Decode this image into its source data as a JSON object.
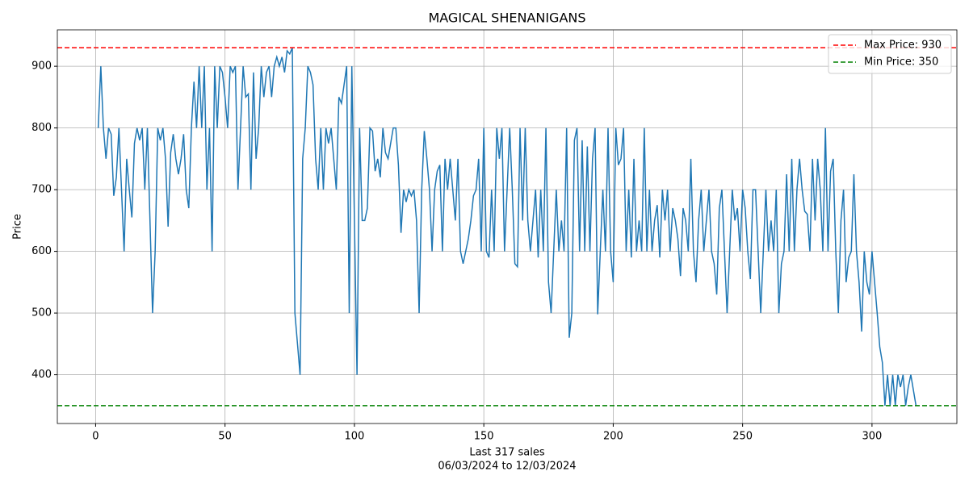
{
  "chart_data": {
    "type": "line",
    "title": "MAGICAL SHENANIGANS",
    "xlabel": [
      "Last 317 sales",
      "06/03/2024 to 12/03/2024"
    ],
    "ylabel": "Price",
    "xlim": [
      -14.8,
      332.8
    ],
    "ylim": [
      321,
      959
    ],
    "xticks": [
      0,
      50,
      100,
      150,
      200,
      250,
      300
    ],
    "yticks": [
      400,
      500,
      600,
      700,
      800,
      900
    ],
    "grid": true,
    "legend": "upper right",
    "x": [
      1,
      2,
      3,
      4,
      5,
      6,
      7,
      8,
      9,
      10,
      11,
      12,
      13,
      14,
      15,
      16,
      17,
      18,
      19,
      20,
      21,
      22,
      23,
      24,
      25,
      26,
      27,
      28,
      29,
      30,
      31,
      32,
      33,
      34,
      35,
      36,
      37,
      38,
      39,
      40,
      41,
      42,
      43,
      44,
      45,
      46,
      47,
      48,
      49,
      50,
      51,
      52,
      53,
      54,
      55,
      56,
      57,
      58,
      59,
      60,
      61,
      62,
      63,
      64,
      65,
      66,
      67,
      68,
      69,
      70,
      71,
      72,
      73,
      74,
      75,
      76,
      77,
      78,
      79,
      80,
      81,
      82,
      83,
      84,
      85,
      86,
      87,
      88,
      89,
      90,
      91,
      92,
      93,
      94,
      95,
      96,
      97,
      98,
      99,
      100,
      101,
      102,
      103,
      104,
      105,
      106,
      107,
      108,
      109,
      110,
      111,
      112,
      113,
      114,
      115,
      116,
      117,
      118,
      119,
      120,
      121,
      122,
      123,
      124,
      125,
      126,
      127,
      128,
      129,
      130,
      131,
      132,
      133,
      134,
      135,
      136,
      137,
      138,
      139,
      140,
      141,
      142,
      143,
      144,
      145,
      146,
      147,
      148,
      149,
      150,
      151,
      152,
      153,
      154,
      155,
      156,
      157,
      158,
      159,
      160,
      161,
      162,
      163,
      164,
      165,
      166,
      167,
      168,
      169,
      170,
      171,
      172,
      173,
      174,
      175,
      176,
      177,
      178,
      179,
      180,
      181,
      182,
      183,
      184,
      185,
      186,
      187,
      188,
      189,
      190,
      191,
      192,
      193,
      194,
      195,
      196,
      197,
      198,
      199,
      200,
      201,
      202,
      203,
      204,
      205,
      206,
      207,
      208,
      209,
      210,
      211,
      212,
      213,
      214,
      215,
      216,
      217,
      218,
      219,
      220,
      221,
      222,
      223,
      224,
      225,
      226,
      227,
      228,
      229,
      230,
      231,
      232,
      233,
      234,
      235,
      236,
      237,
      238,
      239,
      240,
      241,
      242,
      243,
      244,
      245,
      246,
      247,
      248,
      249,
      250,
      251,
      252,
      253,
      254,
      255,
      256,
      257,
      258,
      259,
      260,
      261,
      262,
      263,
      264,
      265,
      266,
      267,
      268,
      269,
      270,
      271,
      272,
      273,
      274,
      275,
      276,
      277,
      278,
      279,
      280,
      281,
      282,
      283,
      284,
      285,
      286,
      287,
      288,
      289,
      290,
      291,
      292,
      293,
      294,
      295,
      296,
      297,
      298,
      299,
      300,
      301,
      302,
      303,
      304,
      305,
      306,
      307,
      308,
      309,
      310,
      311,
      312,
      313,
      314,
      315,
      316,
      317
    ],
    "series": [
      {
        "color": "#1f77b4",
        "values": [
          800,
          900,
          800,
          750,
          800,
          790,
          690,
          720,
          800,
          700,
          600,
          750,
          700,
          655,
          775,
          800,
          780,
          800,
          700,
          800,
          650,
          500,
          600,
          800,
          780,
          800,
          750,
          640,
          760,
          790,
          750,
          725,
          750,
          790,
          700,
          670,
          800,
          875,
          800,
          900,
          800,
          900,
          700,
          800,
          600,
          900,
          800,
          900,
          890,
          850,
          800,
          900,
          890,
          900,
          700,
          800,
          900,
          850,
          855,
          700,
          890,
          750,
          800,
          900,
          850,
          890,
          900,
          850,
          900,
          915,
          900,
          915,
          890,
          925,
          920,
          930,
          500,
          450,
          400,
          750,
          800,
          900,
          890,
          870,
          750,
          700,
          800,
          700,
          800,
          775,
          800,
          750,
          700,
          850,
          840,
          870,
          900,
          500,
          900,
          650,
          400,
          800,
          650,
          650,
          670,
          800,
          795,
          730,
          750,
          720,
          800,
          760,
          750,
          775,
          800,
          800,
          740,
          630,
          700,
          680,
          700,
          690,
          700,
          650,
          500,
          700,
          795,
          750,
          700,
          600,
          700,
          730,
          740,
          600,
          750,
          700,
          750,
          700,
          650,
          750,
          600,
          580,
          600,
          620,
          650,
          690,
          700,
          750,
          600,
          800,
          600,
          590,
          700,
          600,
          800,
          750,
          800,
          600,
          700,
          800,
          700,
          580,
          575,
          800,
          650,
          800,
          650,
          600,
          650,
          700,
          590,
          700,
          600,
          800,
          550,
          500,
          600,
          700,
          600,
          650,
          600,
          800,
          460,
          500,
          780,
          800,
          600,
          780,
          600,
          770,
          600,
          750,
          800,
          498,
          600,
          700,
          600,
          800,
          600,
          550,
          800,
          740,
          750,
          800,
          600,
          700,
          590,
          750,
          600,
          650,
          600,
          800,
          600,
          700,
          600,
          650,
          675,
          590,
          700,
          650,
          700,
          600,
          670,
          650,
          620,
          560,
          670,
          650,
          600,
          750,
          600,
          550,
          650,
          700,
          600,
          650,
          700,
          600,
          580,
          530,
          670,
          700,
          600,
          500,
          600,
          700,
          650,
          670,
          600,
          700,
          670,
          600,
          555,
          700,
          700,
          600,
          500,
          600,
          700,
          600,
          650,
          600,
          700,
          500,
          580,
          600,
          725,
          600,
          750,
          600,
          700,
          750,
          700,
          665,
          660,
          600,
          750,
          650,
          750,
          700,
          600,
          800,
          600,
          730,
          750,
          600,
          500,
          650,
          700,
          550,
          590,
          600,
          725,
          600,
          550,
          470,
          600,
          550,
          530,
          600,
          550,
          500,
          445,
          420,
          350,
          400,
          350,
          400,
          350,
          400,
          380,
          400,
          350,
          380,
          400,
          375,
          350
        ]
      }
    ],
    "hlines": [
      {
        "name": "Max Price: 930",
        "value": 930,
        "color": "#ff0000"
      },
      {
        "name": "Min Price: 350",
        "value": 350,
        "color": "#008000"
      }
    ]
  }
}
